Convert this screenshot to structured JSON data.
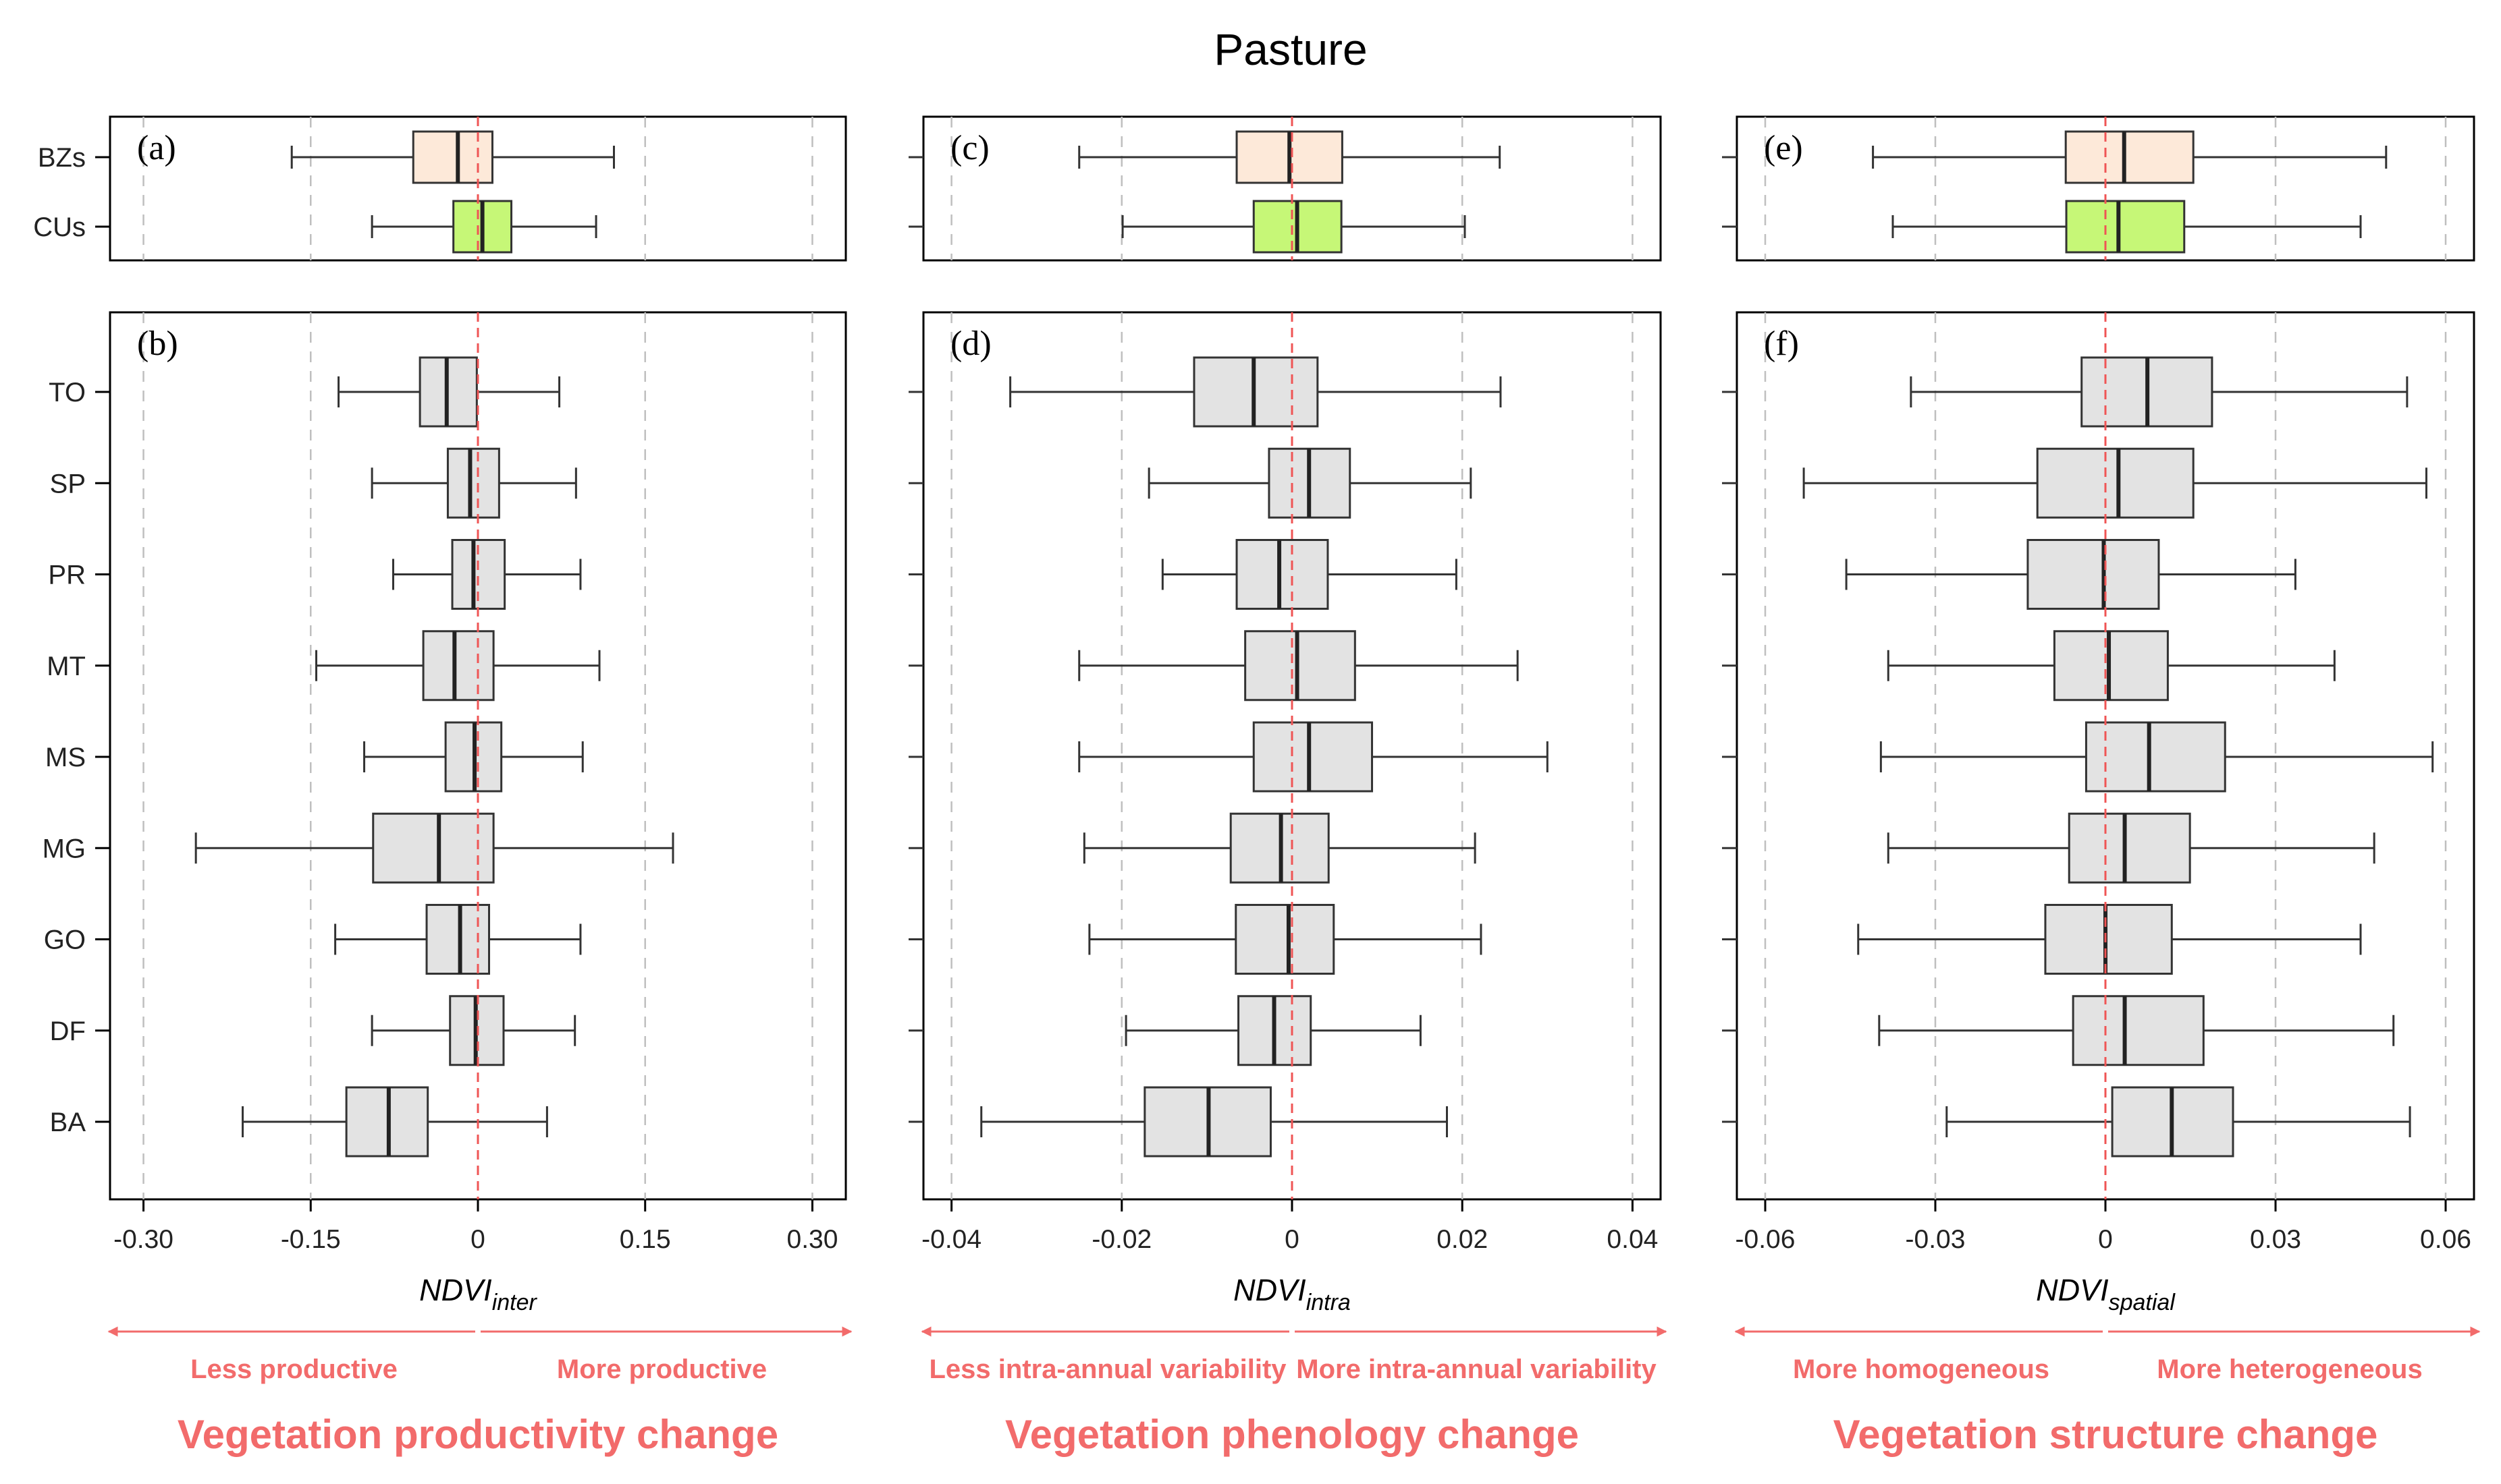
{
  "figure_title": "Pasture",
  "colors": {
    "bz_fill": "#fde9d9",
    "cu_fill": "#c6f777",
    "box_fill": "#e3e3e3",
    "zero_line": "#ef5555",
    "annotation": "#f26b6b",
    "grid": "#bfbfbf"
  },
  "chart_data": [
    {
      "type": "boxplot",
      "id": "a",
      "panel_label": "(a)",
      "xlim": [
        -0.33,
        0.33
      ],
      "xticks": [
        -0.3,
        -0.15,
        0,
        0.15,
        0.3
      ],
      "categories": [
        "BZs",
        "CUs"
      ],
      "series": [
        {
          "name": "BZs",
          "whisker_low": -0.167,
          "q1": -0.058,
          "median": -0.018,
          "q3": 0.013,
          "whisker_high": 0.122,
          "fill": "#fde9d9"
        },
        {
          "name": "CUs",
          "whisker_low": -0.095,
          "q1": -0.022,
          "median": 0.004,
          "q3": 0.03,
          "whisker_high": 0.106,
          "fill": "#c6f777"
        }
      ]
    },
    {
      "type": "boxplot",
      "id": "b",
      "panel_label": "(b)",
      "xlim": [
        -0.33,
        0.33
      ],
      "xticks": [
        -0.3,
        -0.15,
        0,
        0.15,
        0.3
      ],
      "tick_labels": [
        "-0.30",
        "-0.15",
        "0",
        "0.15",
        "0.30"
      ],
      "xlabel": {
        "main": "NDVI",
        "sub": "inter"
      },
      "categories": [
        "TO",
        "SP",
        "PR",
        "MT",
        "MS",
        "MG",
        "GO",
        "DF",
        "BA"
      ],
      "series": [
        {
          "name": "TO",
          "whisker_low": -0.125,
          "q1": -0.052,
          "median": -0.028,
          "q3": -0.001,
          "whisker_high": 0.073
        },
        {
          "name": "SP",
          "whisker_low": -0.095,
          "q1": -0.027,
          "median": -0.007,
          "q3": 0.019,
          "whisker_high": 0.088
        },
        {
          "name": "PR",
          "whisker_low": -0.076,
          "q1": -0.023,
          "median": -0.004,
          "q3": 0.024,
          "whisker_high": 0.092
        },
        {
          "name": "MT",
          "whisker_low": -0.145,
          "q1": -0.049,
          "median": -0.021,
          "q3": 0.014,
          "whisker_high": 0.109
        },
        {
          "name": "MS",
          "whisker_low": -0.102,
          "q1": -0.029,
          "median": -0.003,
          "q3": 0.021,
          "whisker_high": 0.094
        },
        {
          "name": "MG",
          "whisker_low": -0.253,
          "q1": -0.094,
          "median": -0.035,
          "q3": 0.014,
          "whisker_high": 0.175
        },
        {
          "name": "GO",
          "whisker_low": -0.128,
          "q1": -0.046,
          "median": -0.016,
          "q3": 0.01,
          "whisker_high": 0.092
        },
        {
          "name": "DF",
          "whisker_low": -0.095,
          "q1": -0.025,
          "median": -0.002,
          "q3": 0.023,
          "whisker_high": 0.087
        },
        {
          "name": "BA",
          "whisker_low": -0.211,
          "q1": -0.118,
          "median": -0.08,
          "q3": -0.045,
          "whisker_high": 0.062
        }
      ],
      "direction_left": "Less productive",
      "direction_right": "More productive",
      "change_title": "Vegetation productivity change"
    },
    {
      "type": "boxplot",
      "id": "c",
      "panel_label": "(c)",
      "xlim": [
        -0.0433,
        0.0433
      ],
      "xticks": [
        -0.04,
        -0.02,
        0,
        0.02,
        0.04
      ],
      "categories": [
        "BZs",
        "CUs"
      ],
      "series": [
        {
          "name": "BZs",
          "whisker_low": -0.025,
          "q1": -0.0065,
          "median": -0.0003,
          "q3": 0.0059,
          "whisker_high": 0.0244,
          "fill": "#fde9d9"
        },
        {
          "name": "CUs",
          "whisker_low": -0.0199,
          "q1": -0.0045,
          "median": 0.0006,
          "q3": 0.0058,
          "whisker_high": 0.0203,
          "fill": "#c6f777"
        }
      ]
    },
    {
      "type": "boxplot",
      "id": "d",
      "panel_label": "(d)",
      "xlim": [
        -0.0433,
        0.0433
      ],
      "xticks": [
        -0.04,
        -0.02,
        0,
        0.02,
        0.04
      ],
      "tick_labels": [
        "-0.04",
        "-0.02",
        "0",
        "0.02",
        "0.04"
      ],
      "xlabel": {
        "main": "NDVI",
        "sub": "intra"
      },
      "categories": [
        "TO",
        "SP",
        "PR",
        "MT",
        "MS",
        "MG",
        "GO",
        "DF",
        "BA"
      ],
      "series": [
        {
          "name": "TO",
          "whisker_low": -0.0331,
          "q1": -0.0115,
          "median": -0.0045,
          "q3": 0.003,
          "whisker_high": 0.0245
        },
        {
          "name": "SP",
          "whisker_low": -0.0168,
          "q1": -0.0027,
          "median": 0.002,
          "q3": 0.0068,
          "whisker_high": 0.021
        },
        {
          "name": "PR",
          "whisker_low": -0.0152,
          "q1": -0.0065,
          "median": -0.0015,
          "q3": 0.0042,
          "whisker_high": 0.0193
        },
        {
          "name": "MT",
          "whisker_low": -0.025,
          "q1": -0.0055,
          "median": 0.0006,
          "q3": 0.0074,
          "whisker_high": 0.0265
        },
        {
          "name": "MS",
          "whisker_low": -0.025,
          "q1": -0.0045,
          "median": 0.002,
          "q3": 0.0094,
          "whisker_high": 0.03
        },
        {
          "name": "MG",
          "whisker_low": -0.0244,
          "q1": -0.0072,
          "median": -0.0013,
          "q3": 0.0043,
          "whisker_high": 0.0215
        },
        {
          "name": "GO",
          "whisker_low": -0.0238,
          "q1": -0.0066,
          "median": -0.0004,
          "q3": 0.0049,
          "whisker_high": 0.0222
        },
        {
          "name": "DF",
          "whisker_low": -0.0195,
          "q1": -0.0063,
          "median": -0.0021,
          "q3": 0.0022,
          "whisker_high": 0.0151
        },
        {
          "name": "BA",
          "whisker_low": -0.0365,
          "q1": -0.0173,
          "median": -0.0098,
          "q3": -0.0025,
          "whisker_high": 0.0182
        }
      ],
      "direction_left": "Less intra-annual variability",
      "direction_right": "More intra-annual variability",
      "change_title": "Vegetation phenology change"
    },
    {
      "type": "boxplot",
      "id": "e",
      "panel_label": "(e)",
      "xlim": [
        -0.065,
        0.065
      ],
      "xticks": [
        -0.06,
        -0.03,
        0,
        0.03,
        0.06
      ],
      "categories": [
        "BZs",
        "CUs"
      ],
      "series": [
        {
          "name": "BZs",
          "whisker_low": -0.041,
          "q1": -0.007,
          "median": 0.0033,
          "q3": 0.0155,
          "whisker_high": 0.0495,
          "fill": "#fde9d9"
        },
        {
          "name": "CUs",
          "whisker_low": -0.0375,
          "q1": -0.0069,
          "median": 0.0023,
          "q3": 0.0139,
          "whisker_high": 0.045,
          "fill": "#c6f777"
        }
      ]
    },
    {
      "type": "boxplot",
      "id": "f",
      "panel_label": "(f)",
      "xlim": [
        -0.065,
        0.065
      ],
      "xticks": [
        -0.06,
        -0.03,
        0,
        0.03,
        0.06
      ],
      "tick_labels": [
        "-0.06",
        "-0.03",
        "0",
        "0.03",
        "0.06"
      ],
      "xlabel": {
        "main": "NDVI",
        "sub": "spatial"
      },
      "categories": [
        "TO",
        "SP",
        "PR",
        "MT",
        "MS",
        "MG",
        "GO",
        "DF",
        "BA"
      ],
      "series": [
        {
          "name": "TO",
          "whisker_low": -0.0343,
          "q1": -0.0042,
          "median": 0.0074,
          "q3": 0.0188,
          "whisker_high": 0.0532
        },
        {
          "name": "SP",
          "whisker_low": -0.0532,
          "q1": -0.012,
          "median": 0.0023,
          "q3": 0.0155,
          "whisker_high": 0.0566
        },
        {
          "name": "PR",
          "whisker_low": -0.0457,
          "q1": -0.0137,
          "median": -0.0003,
          "q3": 0.0094,
          "whisker_high": 0.0335
        },
        {
          "name": "MT",
          "whisker_low": -0.0383,
          "q1": -0.009,
          "median": 0.0006,
          "q3": 0.011,
          "whisker_high": 0.0404
        },
        {
          "name": "MS",
          "whisker_low": -0.0396,
          "q1": -0.0034,
          "median": 0.0077,
          "q3": 0.0211,
          "whisker_high": 0.0577
        },
        {
          "name": "MG",
          "whisker_low": -0.0383,
          "q1": -0.0064,
          "median": 0.0034,
          "q3": 0.0149,
          "whisker_high": 0.0474
        },
        {
          "name": "GO",
          "whisker_low": -0.0436,
          "q1": -0.0106,
          "median": 0.0,
          "q3": 0.0117,
          "whisker_high": 0.045
        },
        {
          "name": "DF",
          "whisker_low": -0.0399,
          "q1": -0.0057,
          "median": 0.0034,
          "q3": 0.0173,
          "whisker_high": 0.0508
        },
        {
          "name": "BA",
          "whisker_low": -0.028,
          "q1": 0.0012,
          "median": 0.0117,
          "q3": 0.0225,
          "whisker_high": 0.0537
        }
      ],
      "direction_left": "More homogeneous",
      "direction_right": "More heterogeneous",
      "change_title": "Vegetation structure change"
    }
  ]
}
